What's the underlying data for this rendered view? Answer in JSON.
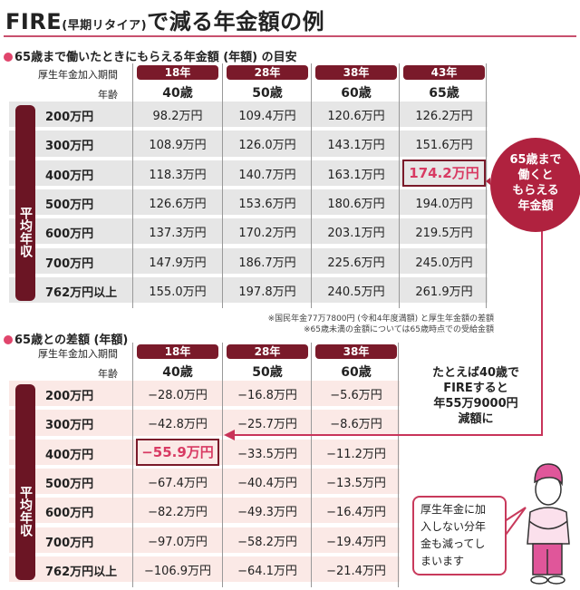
{
  "title": {
    "main": "FIRE",
    "paren": "(早期リタイア)",
    "rest": "で減る年金額の例"
  },
  "section1": {
    "heading": "65歳まで働いたときにもらえる年金額 (年額) の目安",
    "period_label": "厚生年金加入期間",
    "age_label": "年齢",
    "row_group_label": "平均年収",
    "periods": [
      "18年",
      "28年",
      "38年",
      "43年"
    ],
    "ages": [
      "40歳",
      "50歳",
      "60歳",
      "65歳"
    ],
    "rows": [
      {
        "income": "200万円",
        "values": [
          "98.2万円",
          "109.4万円",
          "120.6万円",
          "126.2万円"
        ]
      },
      {
        "income": "300万円",
        "values": [
          "108.9万円",
          "126.0万円",
          "143.1万円",
          "151.6万円"
        ]
      },
      {
        "income": "400万円",
        "values": [
          "118.3万円",
          "140.7万円",
          "163.1万円",
          "174.2万円"
        ]
      },
      {
        "income": "500万円",
        "values": [
          "126.6万円",
          "153.6万円",
          "180.6万円",
          "194.0万円"
        ]
      },
      {
        "income": "600万円",
        "values": [
          "137.3万円",
          "170.2万円",
          "203.1万円",
          "219.5万円"
        ]
      },
      {
        "income": "700万円",
        "values": [
          "147.9万円",
          "186.7万円",
          "225.6万円",
          "245.0万円"
        ]
      },
      {
        "income": "762万円以上",
        "values": [
          "155.0万円",
          "197.8万円",
          "240.5万円",
          "261.9万円"
        ]
      }
    ],
    "notes": [
      "※国民年金77万7800円 (令和4年度満額) と厚生年金額の差額",
      "※65歳未満の金額については65歳時点での受給金額"
    ]
  },
  "section2": {
    "heading": "65歳との差額 (年額)",
    "period_label": "厚生年金加入期間",
    "age_label": "年齢",
    "row_group_label": "平均年収",
    "periods": [
      "18年",
      "28年",
      "38年"
    ],
    "ages": [
      "40歳",
      "50歳",
      "60歳"
    ],
    "rows": [
      {
        "income": "200万円",
        "values": [
          "−28.0万円",
          "−16.8万円",
          "−5.6万円"
        ]
      },
      {
        "income": "300万円",
        "values": [
          "−42.8万円",
          "−25.7万円",
          "−8.6万円"
        ]
      },
      {
        "income": "400万円",
        "values": [
          "−55.9万円",
          "−33.5万円",
          "−11.2万円"
        ]
      },
      {
        "income": "500万円",
        "values": [
          "−67.4万円",
          "−40.4万円",
          "−13.5万円"
        ]
      },
      {
        "income": "600万円",
        "values": [
          "−82.2万円",
          "−49.3万円",
          "−16.4万円"
        ]
      },
      {
        "income": "700万円",
        "values": [
          "−97.0万円",
          "−58.2万円",
          "−19.4万円"
        ]
      },
      {
        "income": "762万円以上",
        "values": [
          "−106.9万円",
          "−64.1万円",
          "−21.4万円"
        ]
      }
    ]
  },
  "bubble": {
    "lines": [
      "65歳まで",
      "働くと",
      "もらえる",
      "年金額"
    ]
  },
  "callout": {
    "lines": [
      "たとえば40歳で",
      "FIREすると",
      "年55万9000円",
      "減額に"
    ]
  },
  "speech": {
    "lines": [
      "厚生年金に加",
      "入しない分年",
      "金も減ってし",
      "まいます"
    ]
  },
  "colors": {
    "accent": "#7a1a2a",
    "highlight": "#d83a63",
    "row_bg1": "#e6e6e6",
    "row_bg2": "#fbe9e6"
  }
}
